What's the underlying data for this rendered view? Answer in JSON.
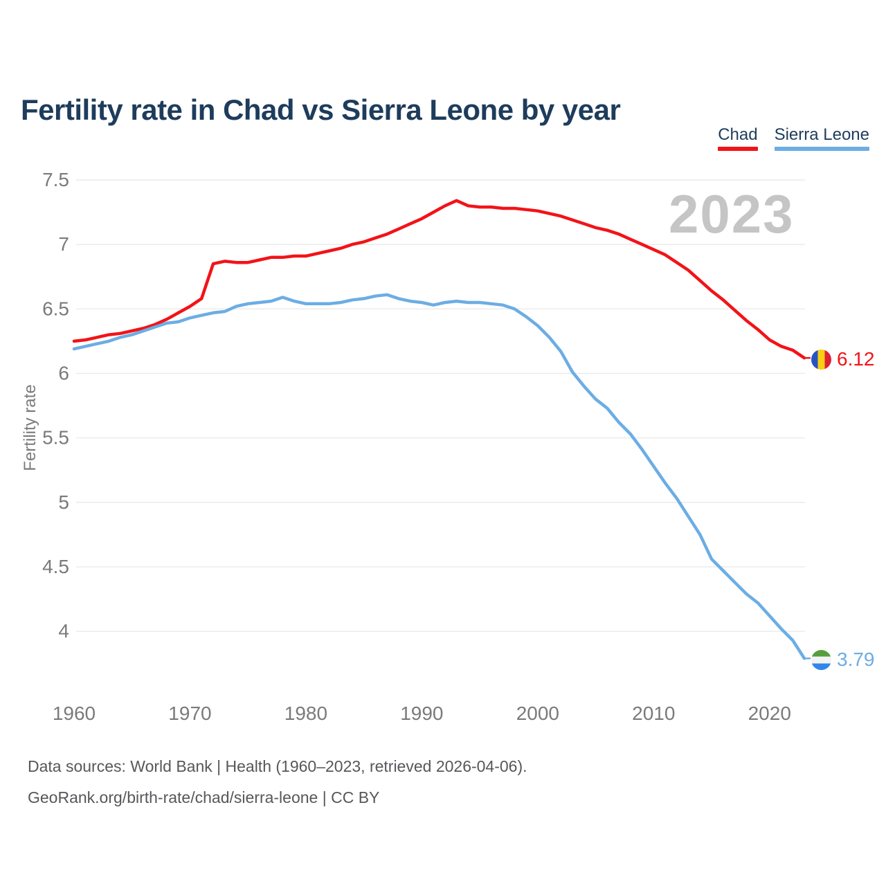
{
  "page": {
    "title": "Fertility rate in Chad vs Sierra Leone by year",
    "footer_line1": "Data sources: World Bank | Health (1960–2023, retrieved 2026-04-06).",
    "footer_line2": "GeoRank.org/birth-rate/chad/sierra-leone | CC BY"
  },
  "legend": [
    {
      "label": "Chad",
      "color": "#f21318"
    },
    {
      "label": "Sierra Leone",
      "color": "#6cade4"
    }
  ],
  "chart_data": {
    "type": "line",
    "title": "Fertility rate in Chad vs Sierra Leone by year",
    "xlabel": "",
    "ylabel": "Fertility rate",
    "watermark": "2023",
    "grid": "horizontal",
    "legend_position": "top-right",
    "ylim": [
      3.6,
      7.6
    ],
    "xlim": [
      1960,
      2023
    ],
    "yticks": [
      7.5,
      7,
      6.5,
      6,
      5.5,
      5,
      4.5,
      4
    ],
    "ytick_labels": [
      "7.5",
      "7",
      "6.5",
      "6",
      "5.5",
      "5",
      "4.5",
      "4"
    ],
    "xticks": [
      1960,
      1970,
      1980,
      1990,
      2000,
      2010,
      2020
    ],
    "x": [
      1960,
      1961,
      1962,
      1963,
      1964,
      1965,
      1966,
      1967,
      1968,
      1969,
      1970,
      1971,
      1972,
      1973,
      1974,
      1975,
      1976,
      1977,
      1978,
      1979,
      1980,
      1981,
      1982,
      1983,
      1984,
      1985,
      1986,
      1987,
      1988,
      1989,
      1990,
      1991,
      1992,
      1993,
      1994,
      1995,
      1996,
      1997,
      1998,
      1999,
      2000,
      2001,
      2002,
      2003,
      2004,
      2005,
      2006,
      2007,
      2008,
      2009,
      2010,
      2011,
      2012,
      2013,
      2014,
      2015,
      2016,
      2017,
      2018,
      2019,
      2020,
      2021,
      2022,
      2023
    ],
    "series": [
      {
        "name": "Chad",
        "color": "#f21318",
        "end_label": "6.12",
        "end_value": 6.12,
        "flag_icon": "chad-flag",
        "values": [
          6.25,
          6.26,
          6.28,
          6.3,
          6.31,
          6.33,
          6.35,
          6.38,
          6.42,
          6.47,
          6.52,
          6.58,
          6.85,
          6.87,
          6.86,
          6.86,
          6.88,
          6.9,
          6.9,
          6.91,
          6.91,
          6.93,
          6.95,
          6.97,
          7.0,
          7.02,
          7.05,
          7.08,
          7.12,
          7.16,
          7.2,
          7.25,
          7.3,
          7.34,
          7.3,
          7.29,
          7.29,
          7.28,
          7.28,
          7.27,
          7.26,
          7.24,
          7.22,
          7.19,
          7.16,
          7.13,
          7.11,
          7.08,
          7.04,
          7.0,
          6.96,
          6.92,
          6.86,
          6.8,
          6.72,
          6.64,
          6.57,
          6.49,
          6.41,
          6.34,
          6.26,
          6.21,
          6.18,
          6.12
        ]
      },
      {
        "name": "Sierra Leone",
        "color": "#6cade4",
        "end_label": "3.79",
        "end_value": 3.79,
        "flag_icon": "sierra-leone-flag",
        "values": [
          6.19,
          6.21,
          6.23,
          6.25,
          6.28,
          6.3,
          6.33,
          6.36,
          6.39,
          6.4,
          6.43,
          6.45,
          6.47,
          6.48,
          6.52,
          6.54,
          6.55,
          6.56,
          6.59,
          6.56,
          6.54,
          6.54,
          6.54,
          6.55,
          6.57,
          6.58,
          6.6,
          6.61,
          6.58,
          6.56,
          6.55,
          6.53,
          6.55,
          6.56,
          6.55,
          6.55,
          6.54,
          6.53,
          6.5,
          6.44,
          6.37,
          6.28,
          6.17,
          6.01,
          5.9,
          5.8,
          5.73,
          5.62,
          5.53,
          5.41,
          5.28,
          5.15,
          5.03,
          4.89,
          4.75,
          4.56,
          4.47,
          4.38,
          4.29,
          4.22,
          4.12,
          4.02,
          3.93,
          3.79
        ]
      }
    ]
  }
}
